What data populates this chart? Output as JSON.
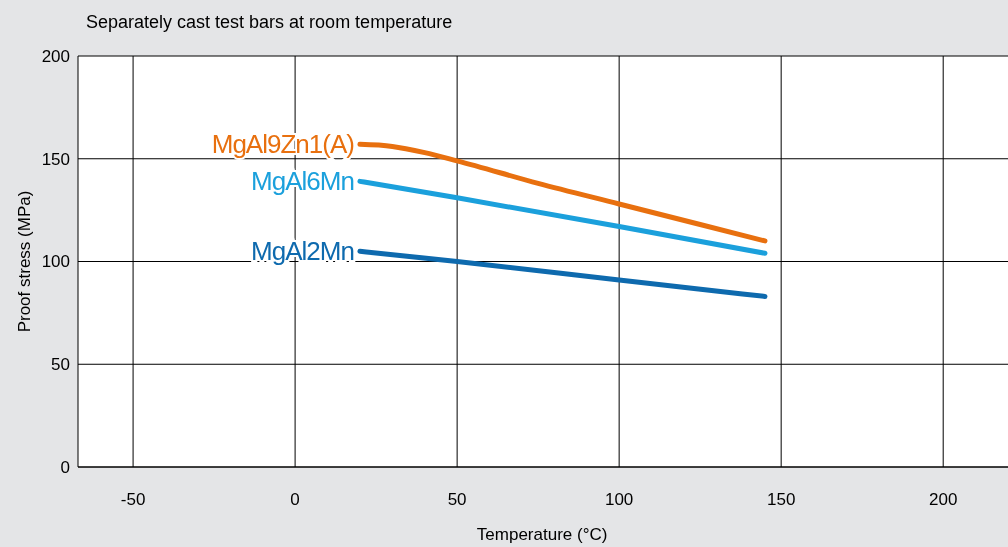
{
  "chart_data": {
    "type": "line",
    "title": "Separately cast test bars at room temperature",
    "xlabel": "Temperature (°C)",
    "ylabel": "Proof stress (MPa)",
    "xlim": [
      -67,
      220
    ],
    "xticks": [
      -50,
      0,
      50,
      100,
      150,
      200
    ],
    "ylim": [
      0,
      200
    ],
    "yticks": [
      0,
      50,
      100,
      150,
      200
    ],
    "grid": true,
    "marker": "none",
    "line_style": "solid",
    "series": [
      {
        "name": "MgAl9Zn1(A)",
        "color": "#e8700f",
        "x": [
          20,
          30,
          40,
          50,
          75,
          100,
          125,
          145
        ],
        "values": [
          157,
          156,
          153,
          149,
          138,
          128,
          118,
          110
        ]
      },
      {
        "name": "MgAl6Mn",
        "color": "#1ba0dc",
        "x": [
          20,
          50,
          100,
          145
        ],
        "values": [
          139,
          131,
          117,
          104
        ]
      },
      {
        "name": "MgAl2Mn",
        "color": "#0e6aae",
        "x": [
          20,
          50,
          100,
          145
        ],
        "values": [
          105,
          100,
          91,
          83
        ]
      }
    ]
  }
}
